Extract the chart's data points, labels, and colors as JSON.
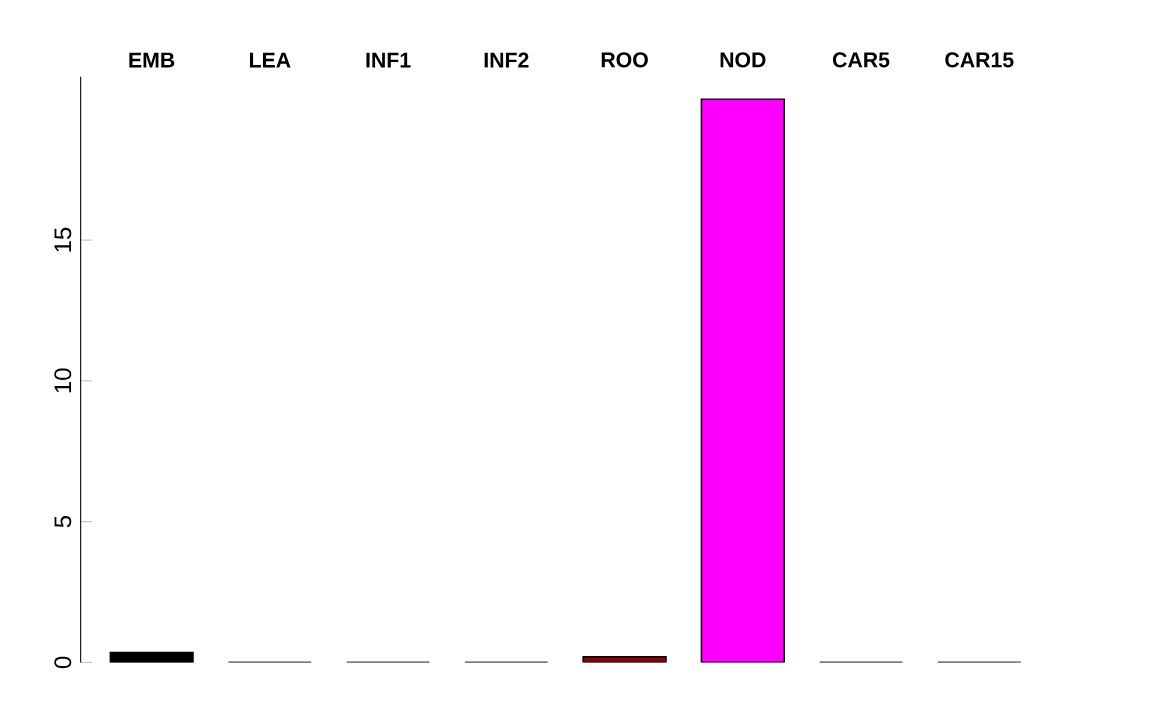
{
  "chart_data": {
    "type": "bar",
    "categories": [
      "EMB",
      "LEA",
      "INF1",
      "INF2",
      "ROO",
      "NOD",
      "CAR5",
      "CAR15"
    ],
    "values": [
      0.35,
      0,
      0,
      0,
      0.2,
      20,
      0,
      0
    ],
    "colors": [
      "#000000",
      "#8b0000",
      "#006400",
      "#00008b",
      "#8b0000",
      "#ff00ff",
      "#333333",
      "#333333"
    ],
    "ylim": [
      0,
      20.8
    ],
    "yticks": [
      0,
      5,
      10,
      15
    ]
  }
}
